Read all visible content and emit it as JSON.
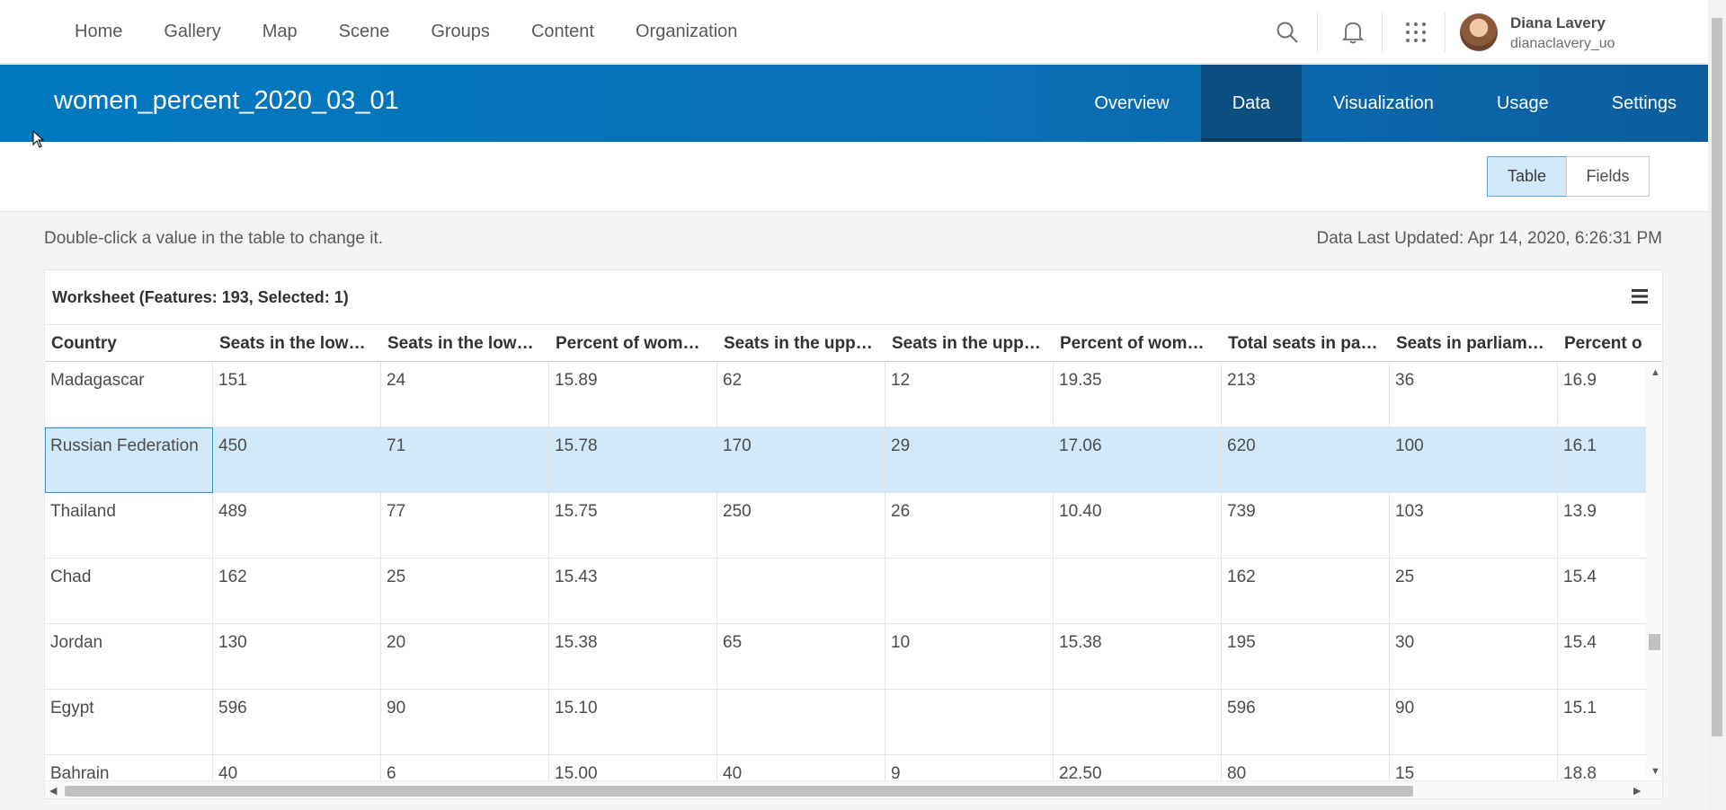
{
  "nav": {
    "items": [
      "Home",
      "Gallery",
      "Map",
      "Scene",
      "Groups",
      "Content",
      "Organization"
    ],
    "icons": [
      "search-icon",
      "bell-icon",
      "app-launcher-icon"
    ]
  },
  "user": {
    "name": "Diana Lavery",
    "username": "dianaclavery_uo"
  },
  "item": {
    "title": "women_percent_2020_03_01",
    "tabs": [
      "Overview",
      "Data",
      "Visualization",
      "Usage",
      "Settings"
    ],
    "active_tab": "Data"
  },
  "view_toggle": {
    "table": "Table",
    "fields": "Fields",
    "active": "Table"
  },
  "hint": "Double-click a value in the table to change it.",
  "updated": "Data Last Updated: Apr 14, 2020, 6:26:31 PM",
  "worksheet": {
    "title": "Worksheet (Features: 193, Selected: 1)",
    "columns": [
      "Country",
      "Seats in the low…",
      "Seats in the low…",
      "Percent of wom…",
      "Seats in the upp…",
      "Seats in the upp…",
      "Percent of wom…",
      "Total seats in pa…",
      "Seats in parliam…",
      "Percent o"
    ],
    "rows": [
      [
        "Madagascar",
        "151",
        "24",
        "15.89",
        "62",
        "12",
        "19.35",
        "213",
        "36",
        "16.9"
      ],
      [
        "Russian Federation",
        "450",
        "71",
        "15.78",
        "170",
        "29",
        "17.06",
        "620",
        "100",
        "16.1"
      ],
      [
        "Thailand",
        "489",
        "77",
        "15.75",
        "250",
        "26",
        "10.40",
        "739",
        "103",
        "13.9"
      ],
      [
        "Chad",
        "162",
        "25",
        "15.43",
        "",
        "",
        "",
        "162",
        "25",
        "15.4"
      ],
      [
        "Jordan",
        "130",
        "20",
        "15.38",
        "65",
        "10",
        "15.38",
        "195",
        "30",
        "15.4"
      ],
      [
        "Egypt",
        "596",
        "90",
        "15.10",
        "",
        "",
        "",
        "596",
        "90",
        "15.1"
      ],
      [
        "Bahrain",
        "40",
        "6",
        "15.00",
        "40",
        "9",
        "22.50",
        "80",
        "15",
        "18.8"
      ]
    ],
    "selected_row": 1
  },
  "colors": {
    "brand_blue": "#0079c1",
    "active_tab": "#0b4f80",
    "selection": "#d2e9f9"
  }
}
